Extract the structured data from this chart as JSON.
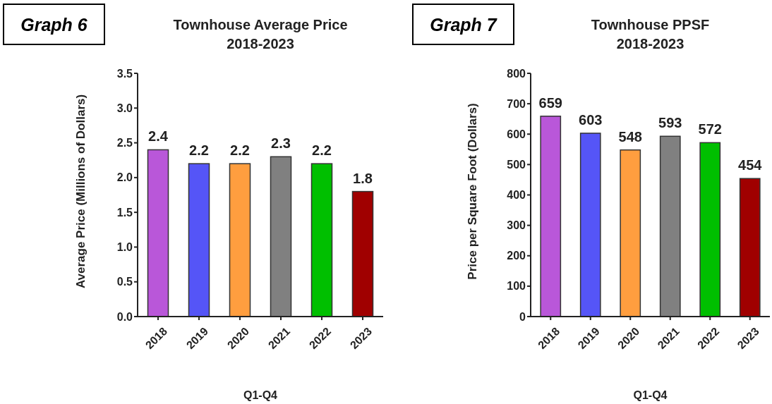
{
  "chart_data": [
    {
      "type": "bar",
      "title": "Townhouse Average Price\n2018-2023",
      "annotations": [
        "Graph 6"
      ],
      "xlabel": "Q1-Q4",
      "ylabel": "Average Price (Millions of Dollars)",
      "categories": [
        "2018",
        "2019",
        "2020",
        "2021",
        "2022",
        "2023"
      ],
      "values": [
        2.4,
        2.2,
        2.2,
        2.3,
        2.2,
        1.8
      ],
      "colors": [
        "#b957d9",
        "#5555f7",
        "#ff9e3f",
        "#808080",
        "#00bf00",
        "#a00000"
      ],
      "ylim": [
        0,
        3.5
      ],
      "yticks": [
        {
          "value": 0,
          "label": "0.0"
        },
        0.5,
        {
          "value": 1,
          "label": "1.0"
        },
        1.5,
        {
          "value": 2,
          "label": "2.0"
        },
        2.5,
        {
          "value": 3,
          "label": "3.0"
        },
        3.5
      ],
      "data_labels": true
    },
    {
      "type": "bar",
      "title": "Townhouse PPSF\n2018-2023",
      "annotations": [
        "Graph 7"
      ],
      "xlabel": "Q1-Q4",
      "ylabel": "Price per Square Foot (Dollars)",
      "categories": [
        "2018",
        "2019",
        "2020",
        "2021",
        "2022",
        "2023"
      ],
      "values": [
        659,
        603,
        548,
        593,
        572,
        454
      ],
      "colors": [
        "#b957d9",
        "#5555f7",
        "#ff9e3f",
        "#808080",
        "#00bf00",
        "#a00000"
      ],
      "ylim": [
        0,
        800
      ],
      "yticks": [
        0,
        100,
        200,
        300,
        400,
        500,
        600,
        700,
        800
      ],
      "data_labels": true
    }
  ]
}
